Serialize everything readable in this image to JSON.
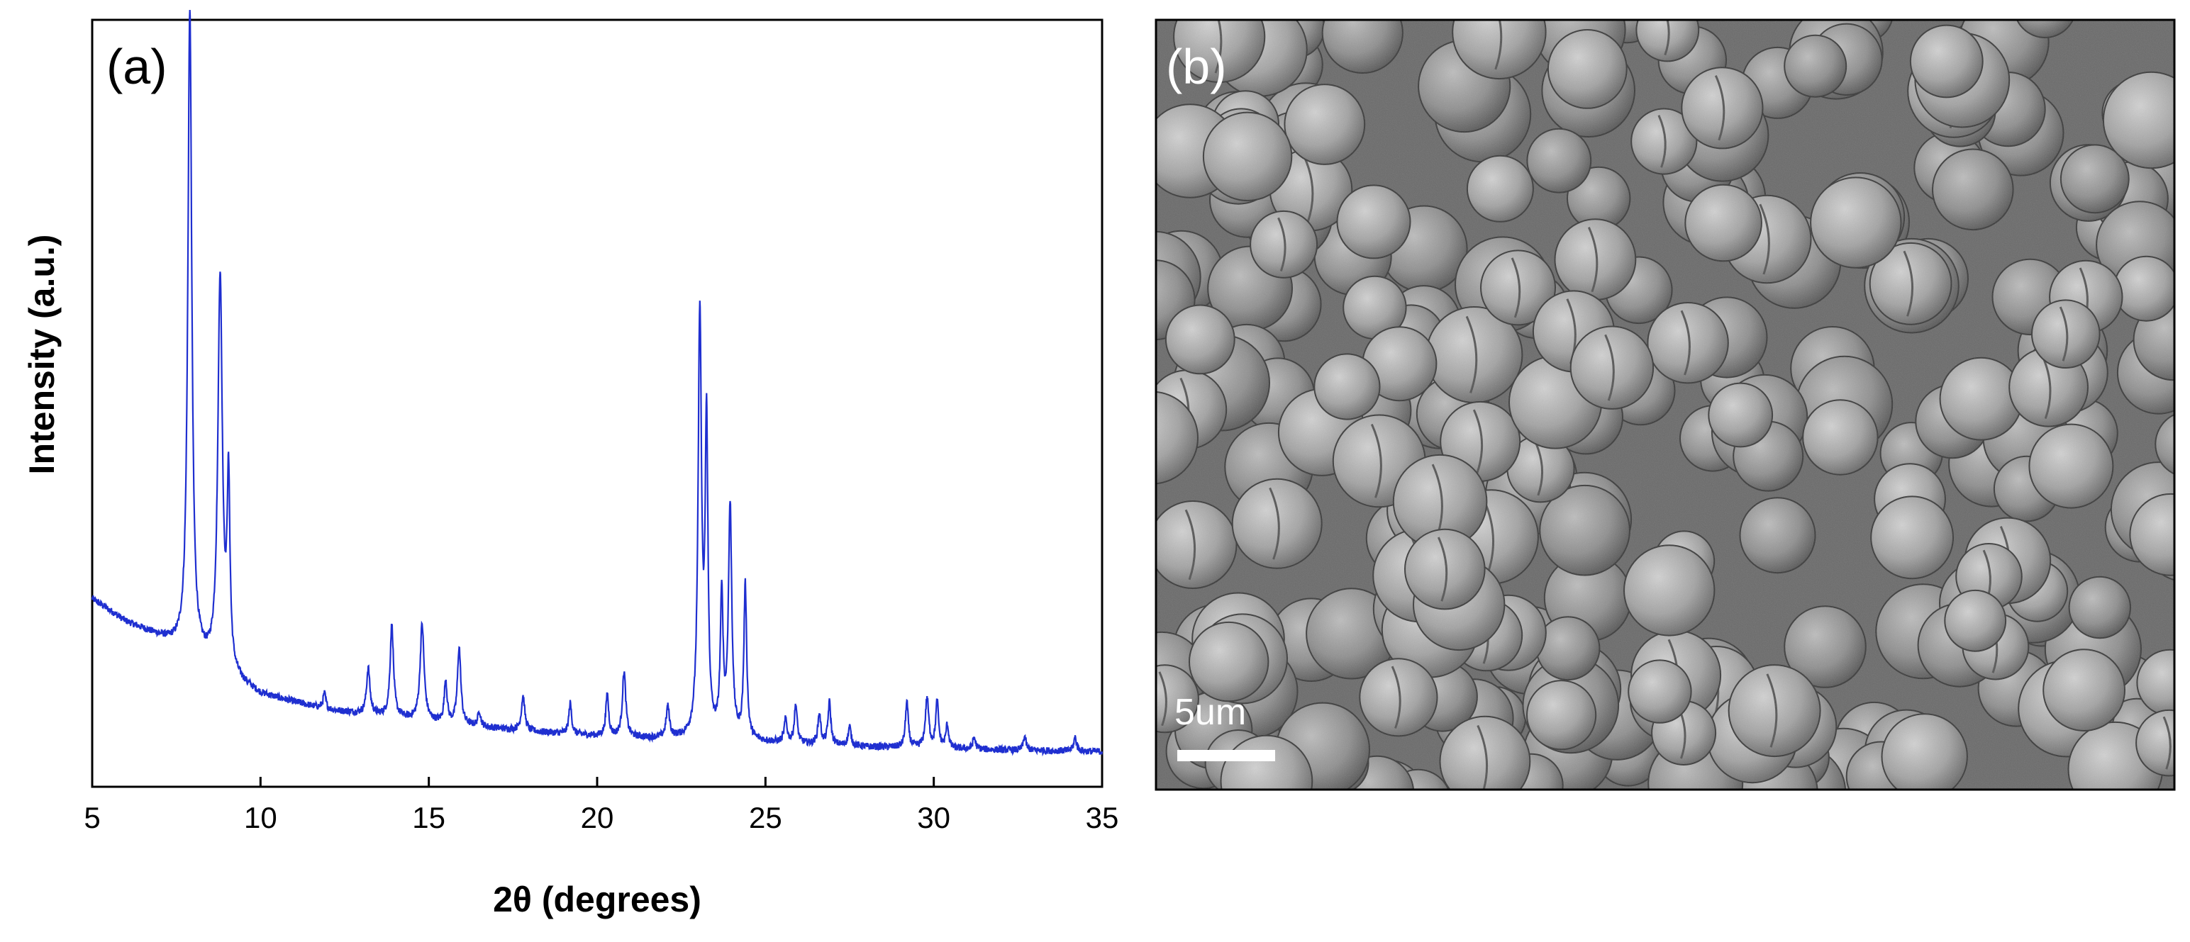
{
  "panels": {
    "a": {
      "label": "(a)",
      "chart_data": {
        "type": "line",
        "title": "",
        "xlabel": "2θ (degrees)",
        "ylabel": "Intensity (a.u.)",
        "xlim": [
          5,
          35
        ],
        "ylim": [
          0,
          100
        ],
        "yticks_shown": false,
        "xticks": [
          "5",
          "10",
          "15",
          "20",
          "25",
          "30",
          "35"
        ],
        "line_color": "#1f2fd0",
        "baseline": [
          [
            5,
            24.5
          ],
          [
            6,
            21.5
          ],
          [
            7,
            19.5
          ],
          [
            7.6,
            18
          ],
          [
            8.4,
            16
          ],
          [
            9,
            14.5
          ],
          [
            10,
            12
          ],
          [
            11,
            11
          ],
          [
            12,
            10
          ],
          [
            14,
            9
          ],
          [
            16,
            8
          ],
          [
            18,
            7.2
          ],
          [
            20,
            6.6
          ],
          [
            22,
            6.2
          ],
          [
            24,
            6
          ],
          [
            26,
            5.6
          ],
          [
            28,
            5.2
          ],
          [
            30,
            5
          ],
          [
            32,
            4.8
          ],
          [
            35,
            4.6
          ]
        ],
        "peaks": [
          {
            "x": 7.9,
            "height": 84,
            "width": 0.07
          },
          {
            "x": 8.8,
            "height": 51,
            "width": 0.08
          },
          {
            "x": 9.05,
            "height": 24,
            "width": 0.05
          },
          {
            "x": 11.9,
            "height": 2,
            "width": 0.05
          },
          {
            "x": 13.2,
            "height": 6,
            "width": 0.06
          },
          {
            "x": 13.9,
            "height": 12,
            "width": 0.06
          },
          {
            "x": 14.8,
            "height": 12.5,
            "width": 0.07
          },
          {
            "x": 15.5,
            "height": 5.5,
            "width": 0.05
          },
          {
            "x": 15.9,
            "height": 10,
            "width": 0.06
          },
          {
            "x": 16.5,
            "height": 2,
            "width": 0.05
          },
          {
            "x": 17.8,
            "height": 4.5,
            "width": 0.06
          },
          {
            "x": 19.2,
            "height": 4,
            "width": 0.05
          },
          {
            "x": 20.3,
            "height": 5.5,
            "width": 0.05
          },
          {
            "x": 20.8,
            "height": 8.5,
            "width": 0.06
          },
          {
            "x": 22.1,
            "height": 4,
            "width": 0.06
          },
          {
            "x": 23.05,
            "height": 55,
            "width": 0.06
          },
          {
            "x": 23.25,
            "height": 40,
            "width": 0.05
          },
          {
            "x": 23.7,
            "height": 18,
            "width": 0.05
          },
          {
            "x": 23.95,
            "height": 30,
            "width": 0.06
          },
          {
            "x": 24.4,
            "height": 20,
            "width": 0.05
          },
          {
            "x": 25.6,
            "height": 3,
            "width": 0.05
          },
          {
            "x": 25.9,
            "height": 5,
            "width": 0.05
          },
          {
            "x": 26.6,
            "height": 4,
            "width": 0.05
          },
          {
            "x": 26.9,
            "height": 5.5,
            "width": 0.05
          },
          {
            "x": 27.5,
            "height": 2.5,
            "width": 0.05
          },
          {
            "x": 29.2,
            "height": 6,
            "width": 0.05
          },
          {
            "x": 29.8,
            "height": 6.5,
            "width": 0.06
          },
          {
            "x": 30.1,
            "height": 6,
            "width": 0.05
          },
          {
            "x": 30.4,
            "height": 3,
            "width": 0.05
          },
          {
            "x": 31.2,
            "height": 1.5,
            "width": 0.05
          },
          {
            "x": 32.7,
            "height": 1.8,
            "width": 0.05
          },
          {
            "x": 34.2,
            "height": 1.8,
            "width": 0.05
          }
        ]
      }
    },
    "b": {
      "label": "(b)",
      "scale_bar_label": "5um",
      "image_description_color_bg": "#6a6a6a"
    }
  }
}
